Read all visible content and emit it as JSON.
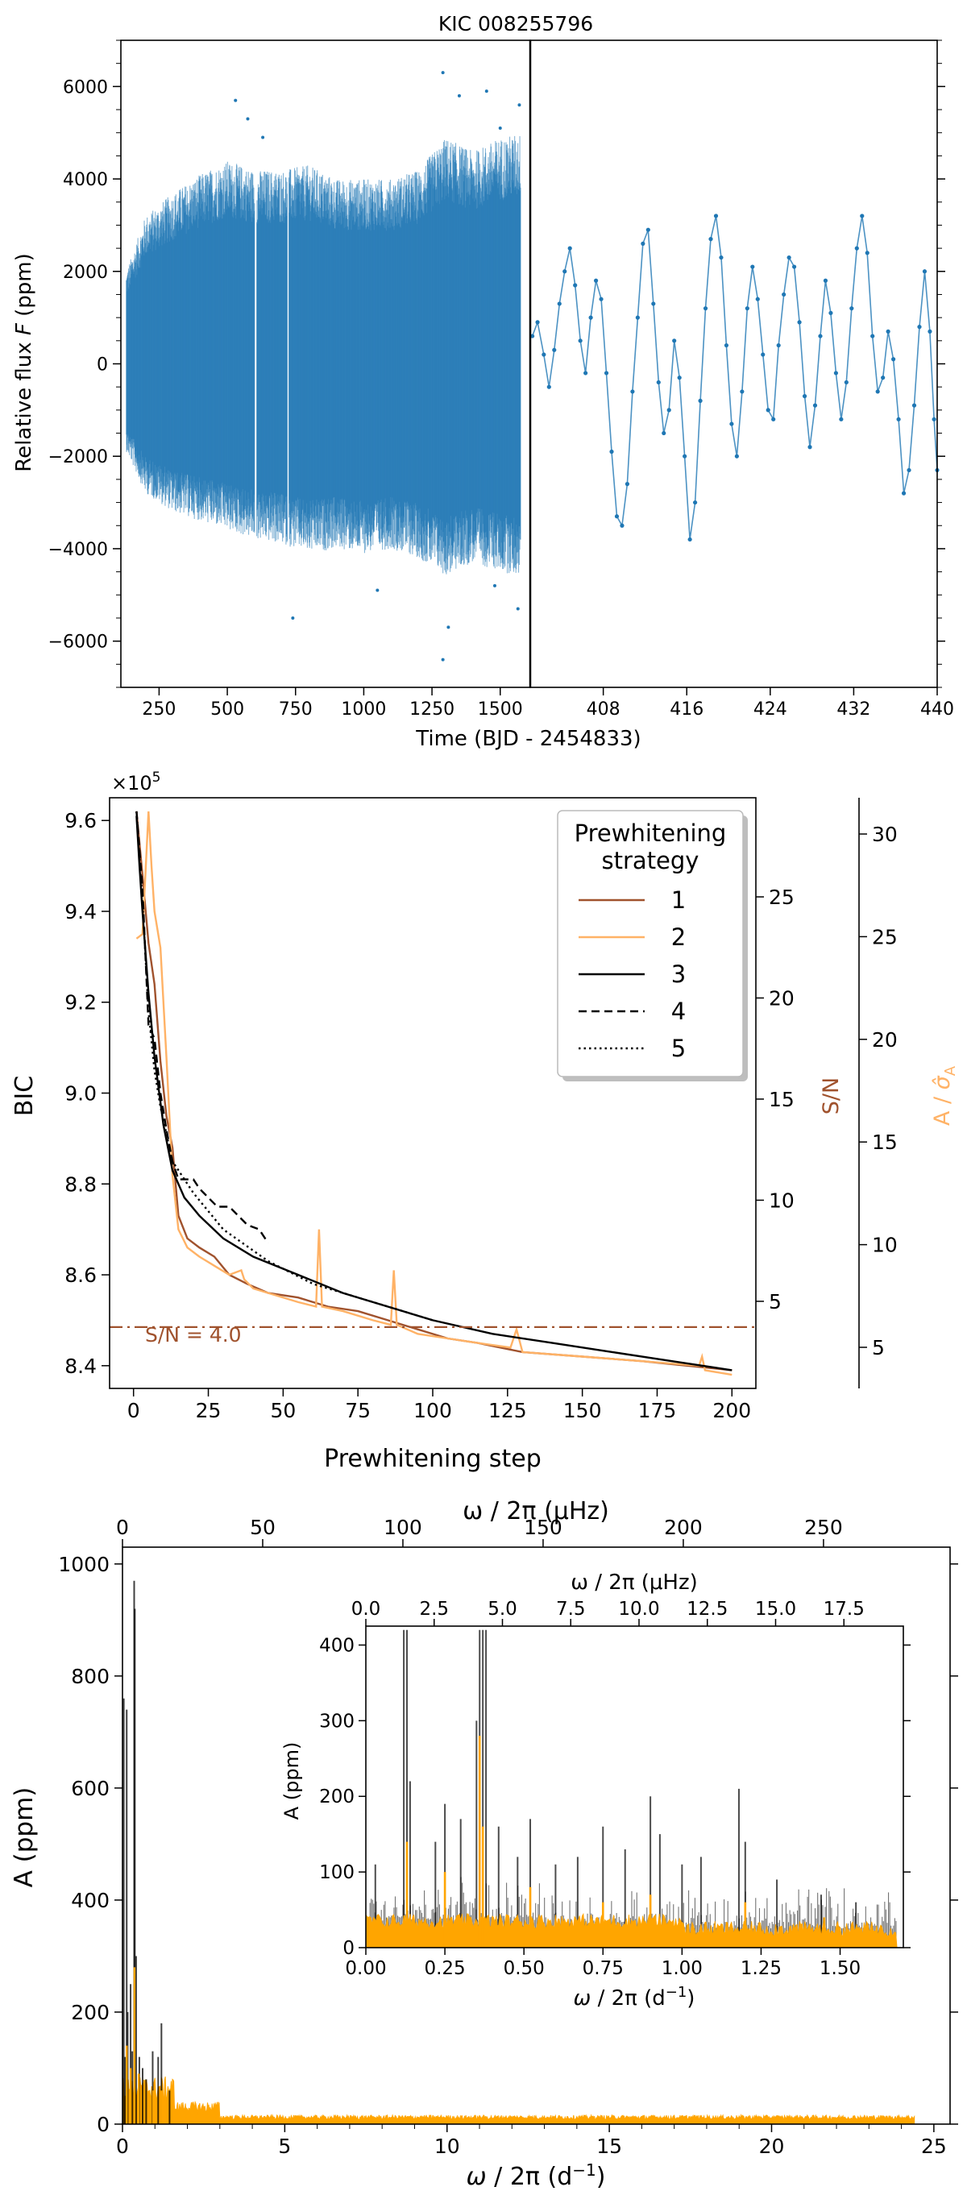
{
  "chart_data": [
    {
      "type": "scatter",
      "title": "KIC 008255796",
      "xlabel": "Time (BJD - 2454833)",
      "ylabel_prefix": "Relative flux ",
      "ylabel_var": "F",
      "ylabel_unit": " (ppm)",
      "ylim": [
        -7000,
        7000
      ],
      "yticks": [
        -6000,
        -4000,
        -2000,
        0,
        2000,
        4000,
        6000
      ],
      "color": "#1f77b4",
      "left_panel": {
        "xlim": [
          110,
          1610
        ],
        "xticks": [
          250,
          500,
          750,
          1000,
          1250,
          1500
        ],
        "envelope": [
          {
            "x": 130,
            "lo": -1900,
            "hi": 2000
          },
          {
            "x": 200,
            "lo": -2800,
            "hi": 3200
          },
          {
            "x": 300,
            "lo": -3200,
            "hi": 3700
          },
          {
            "x": 400,
            "lo": -3400,
            "hi": 4100
          },
          {
            "x": 500,
            "lo": -3600,
            "hi": 4400
          },
          {
            "x": 600,
            "lo": -3800,
            "hi": 4200
          },
          {
            "x": 700,
            "lo": -3900,
            "hi": 4200
          },
          {
            "x": 800,
            "lo": -4100,
            "hi": 4300
          },
          {
            "x": 900,
            "lo": -4000,
            "hi": 4000
          },
          {
            "x": 1000,
            "lo": -4100,
            "hi": 4000
          },
          {
            "x": 1100,
            "lo": -4000,
            "hi": 4000
          },
          {
            "x": 1200,
            "lo": -4200,
            "hi": 4200
          },
          {
            "x": 1300,
            "lo": -4600,
            "hi": 4900
          },
          {
            "x": 1400,
            "lo": -4300,
            "hi": 4600
          },
          {
            "x": 1500,
            "lo": -4500,
            "hi": 4900
          },
          {
            "x": 1575,
            "lo": -4600,
            "hi": 5000
          }
        ],
        "extremes": [
          {
            "x": 530,
            "y": 5700
          },
          {
            "x": 575,
            "y": 5300
          },
          {
            "x": 630,
            "y": 4900
          },
          {
            "x": 1290,
            "y": 6300
          },
          {
            "x": 1350,
            "y": 5800
          },
          {
            "x": 1450,
            "y": 5900
          },
          {
            "x": 1570,
            "y": 5600
          },
          {
            "x": 1500,
            "y": 5100
          },
          {
            "x": 740,
            "y": -5500
          },
          {
            "x": 1290,
            "y": -6400
          },
          {
            "x": 1310,
            "y": -5700
          },
          {
            "x": 1565,
            "y": -5300
          },
          {
            "x": 1480,
            "y": -4800
          },
          {
            "x": 1050,
            "y": -4900
          }
        ]
      },
      "right_panel": {
        "xlim": [
          401,
          440
        ],
        "xticks": [
          408,
          416,
          424,
          432,
          440
        ],
        "points": [
          [
            401.2,
            600
          ],
          [
            401.7,
            900
          ],
          [
            402.3,
            200
          ],
          [
            402.8,
            -500
          ],
          [
            403.3,
            300
          ],
          [
            403.8,
            1300
          ],
          [
            404.3,
            2000
          ],
          [
            404.8,
            2500
          ],
          [
            405.3,
            1700
          ],
          [
            405.8,
            500
          ],
          [
            406.3,
            -200
          ],
          [
            406.8,
            1000
          ],
          [
            407.3,
            1800
          ],
          [
            407.8,
            1400
          ],
          [
            408.3,
            -200
          ],
          [
            408.8,
            -1900
          ],
          [
            409.3,
            -3300
          ],
          [
            409.8,
            -3500
          ],
          [
            410.3,
            -2600
          ],
          [
            410.8,
            -600
          ],
          [
            411.3,
            1000
          ],
          [
            411.8,
            2600
          ],
          [
            412.3,
            2900
          ],
          [
            412.8,
            1300
          ],
          [
            413.3,
            -400
          ],
          [
            413.8,
            -1500
          ],
          [
            414.3,
            -1000
          ],
          [
            414.8,
            500
          ],
          [
            415.3,
            -300
          ],
          [
            415.8,
            -2000
          ],
          [
            416.3,
            -3800
          ],
          [
            416.8,
            -3000
          ],
          [
            417.3,
            -800
          ],
          [
            417.8,
            1200
          ],
          [
            418.3,
            2700
          ],
          [
            418.8,
            3200
          ],
          [
            419.3,
            2300
          ],
          [
            419.8,
            400
          ],
          [
            420.3,
            -1300
          ],
          [
            420.8,
            -2000
          ],
          [
            421.3,
            -600
          ],
          [
            421.8,
            1200
          ],
          [
            422.3,
            2100
          ],
          [
            422.8,
            1400
          ],
          [
            423.3,
            200
          ],
          [
            423.8,
            -1000
          ],
          [
            424.3,
            -1200
          ],
          [
            424.8,
            400
          ],
          [
            425.3,
            1500
          ],
          [
            425.8,
            2300
          ],
          [
            426.3,
            2100
          ],
          [
            426.8,
            900
          ],
          [
            427.3,
            -700
          ],
          [
            427.8,
            -1800
          ],
          [
            428.3,
            -900
          ],
          [
            428.8,
            600
          ],
          [
            429.3,
            1800
          ],
          [
            429.8,
            1100
          ],
          [
            430.3,
            -200
          ],
          [
            430.8,
            -1200
          ],
          [
            431.3,
            -400
          ],
          [
            431.8,
            1200
          ],
          [
            432.3,
            2500
          ],
          [
            432.8,
            3200
          ],
          [
            433.3,
            2400
          ],
          [
            433.8,
            600
          ],
          [
            434.3,
            -600
          ],
          [
            434.8,
            -300
          ],
          [
            435.3,
            700
          ],
          [
            435.8,
            100
          ],
          [
            436.3,
            -1200
          ],
          [
            436.8,
            -2800
          ],
          [
            437.3,
            -2300
          ],
          [
            437.8,
            -900
          ],
          [
            438.3,
            800
          ],
          [
            438.8,
            2000
          ],
          [
            439.3,
            700
          ],
          [
            439.7,
            -1200
          ],
          [
            440,
            -2300
          ]
        ]
      }
    },
    {
      "type": "line",
      "xlabel": "Prewhitening step",
      "ylabel": "BIC",
      "y_multiplier": "×10",
      "y_multiplier_exp": "5",
      "xlim": [
        -8,
        208
      ],
      "ylim": [
        8.35,
        9.65
      ],
      "xticks": [
        0,
        25,
        50,
        75,
        100,
        125,
        150,
        175,
        200
      ],
      "yticks": [
        "8.4",
        "8.6",
        "8.8",
        "9.0",
        "9.2",
        "9.4",
        "9.6"
      ],
      "right_axis_1": {
        "label": "S/N",
        "color": "#a0522d",
        "ticks": [
          5,
          10,
          15,
          20,
          25
        ]
      },
      "right_axis_2": {
        "label_prefix": "A / ",
        "label_symbol": "σ̂",
        "label_sub": "A",
        "color": "#ffb266",
        "ticks": [
          5,
          10,
          15,
          20,
          25,
          30
        ]
      },
      "sn_threshold": {
        "value": 4.0,
        "label": "S/N = 4.0",
        "bic_level": 8.485
      },
      "legend": {
        "title_line1": "Prewhitening",
        "title_line2": "strategy",
        "entries": [
          {
            "label": "1",
            "color": "#a0522d",
            "dash": "solid"
          },
          {
            "label": "2",
            "color": "#ffb266",
            "dash": "solid"
          },
          {
            "label": "3",
            "color": "#000000",
            "dash": "solid"
          },
          {
            "label": "4",
            "color": "#000000",
            "dash": "dashed"
          },
          {
            "label": "5",
            "color": "#000000",
            "dash": "dotted"
          }
        ]
      },
      "series": [
        {
          "name": "1",
          "color": "#a0522d",
          "dash": "solid",
          "x": [
            1,
            3,
            5,
            7,
            9,
            11,
            13,
            15,
            18,
            22,
            27,
            32,
            38,
            45,
            55,
            65,
            75,
            85,
            95,
            105,
            115,
            130,
            150,
            170,
            185,
            200
          ],
          "y": [
            9.62,
            9.48,
            9.33,
            9.24,
            9.07,
            8.95,
            8.88,
            8.73,
            8.68,
            8.66,
            8.64,
            8.6,
            8.58,
            8.56,
            8.55,
            8.53,
            8.52,
            8.5,
            8.48,
            8.46,
            8.45,
            8.43,
            8.42,
            8.41,
            8.4,
            8.39
          ]
        },
        {
          "name": "2",
          "color": "#ffb266",
          "dash": "solid",
          "x": [
            1,
            3,
            5,
            6,
            7,
            9,
            11,
            13,
            15,
            18,
            22,
            27,
            32,
            36,
            37,
            40,
            45,
            55,
            61,
            62,
            63,
            70,
            80,
            86,
            87,
            88,
            95,
            105,
            115,
            126,
            128,
            130,
            150,
            170,
            189,
            190,
            191,
            200
          ],
          "y": [
            9.34,
            9.35,
            9.62,
            9.5,
            9.4,
            9.32,
            9.08,
            8.82,
            8.7,
            8.66,
            8.64,
            8.62,
            8.6,
            8.61,
            8.59,
            8.57,
            8.56,
            8.54,
            8.53,
            8.7,
            8.53,
            8.52,
            8.5,
            8.49,
            8.61,
            8.49,
            8.47,
            8.46,
            8.45,
            8.44,
            8.48,
            8.43,
            8.42,
            8.41,
            8.4,
            8.42,
            8.39,
            8.38
          ]
        },
        {
          "name": "3",
          "color": "#000000",
          "dash": "solid",
          "x": [
            1,
            2,
            3,
            5,
            7,
            10,
            13,
            17,
            22,
            30,
            40,
            55,
            70,
            85,
            100,
            120,
            140,
            160,
            180,
            200
          ],
          "y": [
            9.61,
            9.5,
            9.4,
            9.22,
            9.08,
            8.93,
            8.83,
            8.77,
            8.73,
            8.68,
            8.64,
            8.6,
            8.56,
            8.53,
            8.5,
            8.47,
            8.45,
            8.43,
            8.41,
            8.39
          ]
        },
        {
          "name": "4",
          "color": "#000000",
          "dash": "dashed",
          "x": [
            1,
            3,
            5,
            7,
            9,
            11,
            13,
            15,
            20,
            22,
            25,
            28,
            32,
            35,
            38,
            42,
            45
          ],
          "y": [
            9.62,
            9.45,
            9.15,
            9.12,
            9.0,
            8.92,
            8.85,
            8.81,
            8.81,
            8.79,
            8.77,
            8.75,
            8.75,
            8.73,
            8.71,
            8.7,
            8.67
          ]
        },
        {
          "name": "5",
          "color": "#000000",
          "dash": "dotted",
          "x": [
            1,
            3,
            5,
            7,
            9,
            13,
            20,
            30,
            45,
            60,
            75,
            90,
            100
          ],
          "y": [
            9.62,
            9.42,
            9.18,
            9.05,
            8.97,
            8.85,
            8.78,
            8.7,
            8.63,
            8.58,
            8.55,
            8.52,
            8.5
          ]
        }
      ]
    },
    {
      "type": "line",
      "xlabel_omega": "ω",
      "xlabel_rest": " / 2π (d",
      "xlabel_exp": "−1",
      "xlabel_close": ")",
      "top_label": "ω / 2π (μHz)",
      "ylabel": "A (ppm)",
      "xlim": [
        0,
        25.5
      ],
      "ylim": [
        0,
        1030
      ],
      "xticks": [
        0,
        5,
        10,
        15,
        20,
        25
      ],
      "yticks": [
        0,
        200,
        400,
        600,
        800,
        1000
      ],
      "top_ticks": [
        0,
        50,
        100,
        150,
        200,
        250
      ],
      "orange": "#ffa500",
      "black": "#000000",
      "peaks_black": [
        [
          0.04,
          760
        ],
        [
          0.08,
          120
        ],
        [
          0.13,
          740
        ],
        [
          0.16,
          200
        ],
        [
          0.25,
          250
        ],
        [
          0.3,
          130
        ],
        [
          0.36,
          970
        ],
        [
          0.38,
          920
        ],
        [
          0.42,
          300
        ],
        [
          0.52,
          120
        ],
        [
          0.62,
          100
        ],
        [
          0.73,
          80
        ],
        [
          0.93,
          130
        ],
        [
          1.1,
          120
        ],
        [
          1.2,
          180
        ],
        [
          1.45,
          60
        ]
      ],
      "peaks_orange": [
        [
          0.13,
          140
        ],
        [
          0.37,
          280
        ],
        [
          0.25,
          100
        ],
        [
          0.5,
          90
        ],
        [
          1.2,
          60
        ],
        [
          0.95,
          60
        ]
      ],
      "inset": {
        "xlabel_omega": "ω",
        "xlabel_rest": " / 2π (d",
        "xlabel_exp": "−1",
        "xlabel_close": ")",
        "top_label": "ω / 2π (μHz)",
        "ylabel": "A (ppm)",
        "xlim": [
          0,
          1.7
        ],
        "ylim": [
          0,
          425
        ],
        "xticks": [
          "0.00",
          "0.25",
          "0.50",
          "0.75",
          "1.00",
          "1.25",
          "1.50"
        ],
        "yticks": [
          0,
          100,
          200,
          300,
          400
        ],
        "top_ticks": [
          "0.0",
          "2.5",
          "5.0",
          "7.5",
          "10.0",
          "12.5",
          "15.0",
          "17.5"
        ],
        "peaks_black": [
          [
            0.03,
            110
          ],
          [
            0.12,
            420
          ],
          [
            0.13,
            420
          ],
          [
            0.14,
            220
          ],
          [
            0.22,
            140
          ],
          [
            0.25,
            190
          ],
          [
            0.3,
            170
          ],
          [
            0.35,
            300
          ],
          [
            0.36,
            420
          ],
          [
            0.37,
            420
          ],
          [
            0.38,
            420
          ],
          [
            0.42,
            160
          ],
          [
            0.48,
            120
          ],
          [
            0.52,
            170
          ],
          [
            0.6,
            110
          ],
          [
            0.67,
            120
          ],
          [
            0.75,
            160
          ],
          [
            0.82,
            130
          ],
          [
            0.9,
            200
          ],
          [
            0.93,
            150
          ],
          [
            1.0,
            110
          ],
          [
            1.06,
            120
          ],
          [
            1.18,
            210
          ],
          [
            1.2,
            140
          ],
          [
            1.3,
            90
          ],
          [
            1.44,
            70
          ],
          [
            1.55,
            60
          ]
        ],
        "peaks_orange": [
          [
            0.13,
            140
          ],
          [
            0.25,
            100
          ],
          [
            0.36,
            280
          ],
          [
            0.37,
            160
          ],
          [
            0.52,
            80
          ],
          [
            0.75,
            60
          ],
          [
            0.9,
            70
          ],
          [
            1.2,
            60
          ],
          [
            1.45,
            40
          ]
        ]
      }
    }
  ]
}
